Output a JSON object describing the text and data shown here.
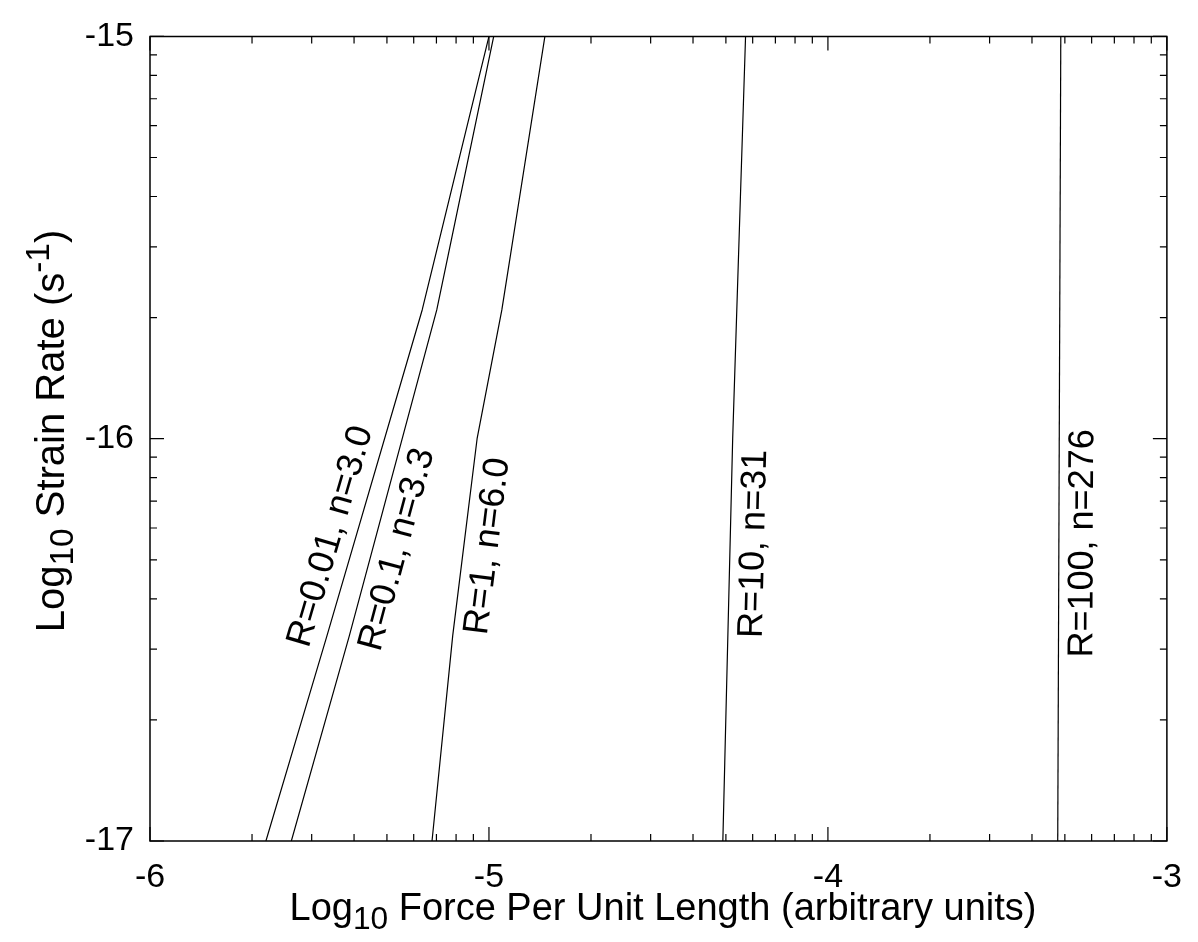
{
  "chart_data": {
    "type": "line",
    "xlabel": "Log$_{10}$ Force Per Unit Length (arbitrary units)",
    "ylabel": "Log$_{10}$ Strain Rate (s$^{-1}$)",
    "xlim": [
      -6,
      -3
    ],
    "ylim": [
      -17,
      -15
    ],
    "xticks": [
      -6,
      {
        "value": -5.699,
        "label": null
      },
      {
        "value": -5.523,
        "label": null
      },
      {
        "value": -5.398,
        "label": null
      },
      {
        "value": -5.301,
        "label": null
      },
      {
        "value": -5.222,
        "label": null
      },
      {
        "value": -5.155,
        "label": null
      },
      {
        "value": -5.097,
        "label": null
      },
      {
        "value": -5.046,
        "label": null
      },
      -5,
      {
        "value": -4.699,
        "label": null
      },
      {
        "value": -4.523,
        "label": null
      },
      {
        "value": -4.398,
        "label": null
      },
      {
        "value": -4.301,
        "label": null
      },
      {
        "value": -4.222,
        "label": null
      },
      {
        "value": -4.155,
        "label": null
      },
      {
        "value": -4.097,
        "label": null
      },
      {
        "value": -4.046,
        "label": null
      },
      -4,
      {
        "value": -3.699,
        "label": null
      },
      {
        "value": -3.523,
        "label": null
      },
      {
        "value": -3.398,
        "label": null
      },
      {
        "value": -3.301,
        "label": null
      },
      {
        "value": -3.222,
        "label": null
      },
      {
        "value": -3.155,
        "label": null
      },
      {
        "value": -3.097,
        "label": null
      },
      {
        "value": -3.046,
        "label": null
      },
      -3
    ],
    "yticks": [
      -17,
      {
        "value": -16.699,
        "label": null
      },
      {
        "value": -16.523,
        "label": null
      },
      {
        "value": -16.398,
        "label": null
      },
      {
        "value": -16.301,
        "label": null
      },
      {
        "value": -16.222,
        "label": null
      },
      {
        "value": -16.155,
        "label": null
      },
      {
        "value": -16.097,
        "label": null
      },
      {
        "value": -16.046,
        "label": null
      },
      -16,
      {
        "value": -15.699,
        "label": null
      },
      {
        "value": -15.523,
        "label": null
      },
      {
        "value": -15.398,
        "label": null
      },
      {
        "value": -15.301,
        "label": null
      },
      {
        "value": -15.222,
        "label": null
      },
      {
        "value": -15.155,
        "label": null
      },
      {
        "value": -15.097,
        "label": null
      },
      {
        "value": -15.046,
        "label": null
      },
      -15
    ],
    "series": [
      {
        "name": "R=0.01, n=3.0",
        "color": "#000000",
        "x": [
          -5.658,
          -5.478,
          -5.197,
          -5.0
        ],
        "values": [
          -17,
          -16.49,
          -15.68,
          -15
        ]
      },
      {
        "name": "R=0.1, n=3.3",
        "color": "#000000",
        "x": [
          -5.583,
          -5.412,
          -5.154,
          -4.986
        ],
        "values": [
          -17,
          -16.49,
          -15.68,
          -15
        ]
      },
      {
        "name": "R=1, n=6.0",
        "color": "#000000",
        "x": [
          -5.168,
          -5.107,
          -5.035,
          -4.962,
          -4.835
        ],
        "values": [
          -17,
          -16.49,
          -16.0,
          -15.68,
          -15
        ]
      },
      {
        "name": "R=10, n=31",
        "color": "#000000",
        "x": [
          -4.31,
          -4.281,
          -4.243
        ],
        "values": [
          -17,
          -16.0,
          -15
        ]
      },
      {
        "name": "R=100, n=276",
        "color": "#000000",
        "x": [
          -3.322,
          -3.313
        ],
        "values": [
          -17,
          -15
        ]
      }
    ]
  }
}
